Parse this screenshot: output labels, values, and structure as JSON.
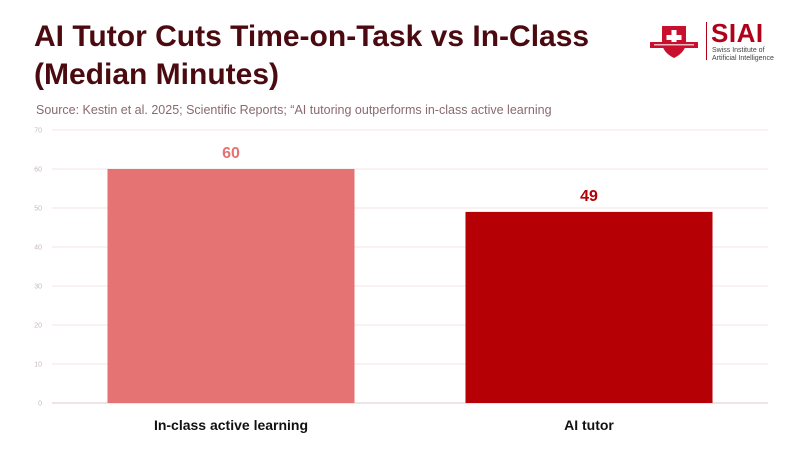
{
  "header": {
    "title": "AI Tutor Cuts Time-on-Task vs In-Class (Median Minutes)",
    "subtitle": "Source: Kestin et al. 2025; Scientific Reports; “AI tutoring outperforms in-class active learning"
  },
  "logo": {
    "brand": "SIAI",
    "brand_sub": "Swiss Institute of Artificial Intelligence",
    "colors": {
      "primary": "#b0001a"
    }
  },
  "chart_data": {
    "type": "bar",
    "categories": [
      "In-class active learning",
      "AI tutor"
    ],
    "values": [
      60,
      49
    ],
    "colors": [
      "#e57373",
      "#b50005"
    ],
    "value_label_colors": [
      "#e57373",
      "#b50005"
    ],
    "title": "AI Tutor Cuts Time-on-Task vs In-Class (Median Minutes)",
    "xlabel": "",
    "ylabel": "",
    "ylim": [
      0,
      70
    ],
    "yticks": [
      0,
      10,
      20,
      30,
      40,
      50,
      60,
      70
    ],
    "grid": true,
    "legend": "none"
  }
}
